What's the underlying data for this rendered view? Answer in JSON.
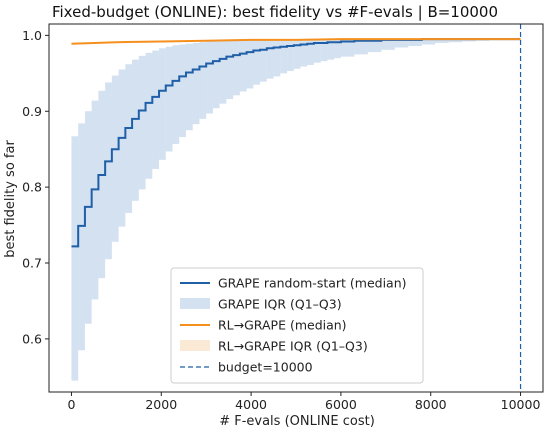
{
  "chart_data": {
    "type": "line",
    "title": "Fixed-budget (ONLINE): best fidelity vs #F-evals  |  B=10000",
    "xlabel": "# F-evals (ONLINE cost)",
    "ylabel": "best fidelity so far",
    "xlim": [
      -500,
      10500
    ],
    "ylim": [
      0.53,
      1.015
    ],
    "xticks": [
      0,
      2000,
      4000,
      6000,
      8000,
      10000
    ],
    "yticks": [
      0.6,
      0.7,
      0.8,
      0.9,
      1.0
    ],
    "xtick_labels": [
      "0",
      "2000",
      "4000",
      "6000",
      "8000",
      "10000"
    ],
    "ytick_labels": [
      "0.6",
      "0.7",
      "0.8",
      "0.9",
      "1.0"
    ],
    "grid": false,
    "legend_position": "lower-center",
    "series": [
      {
        "name": "GRAPE random-start (median)",
        "kind": "step",
        "color": "#1f5fa8",
        "x": [
          0,
          150,
          300,
          450,
          600,
          750,
          900,
          1050,
          1200,
          1350,
          1500,
          1650,
          1800,
          1950,
          2100,
          2250,
          2400,
          2550,
          2700,
          2850,
          3000,
          3150,
          3300,
          3450,
          3600,
          3750,
          3900,
          4050,
          4200,
          4350,
          4500,
          4650,
          4800,
          4950,
          5100,
          5250,
          5400,
          5550,
          5700,
          5850,
          6000,
          6300,
          6600,
          6900,
          7200,
          7500,
          7800,
          8100,
          8400,
          8700,
          9000,
          9300,
          9600,
          10000
        ],
        "y": [
          0.722,
          0.749,
          0.774,
          0.797,
          0.816,
          0.834,
          0.85,
          0.865,
          0.878,
          0.89,
          0.901,
          0.911,
          0.919,
          0.927,
          0.934,
          0.94,
          0.946,
          0.951,
          0.955,
          0.959,
          0.963,
          0.966,
          0.969,
          0.972,
          0.974,
          0.976,
          0.978,
          0.98,
          0.981,
          0.983,
          0.984,
          0.985,
          0.986,
          0.987,
          0.988,
          0.989,
          0.99,
          0.99,
          0.991,
          0.991,
          0.992,
          0.993,
          0.993,
          0.994,
          0.994,
          0.994,
          0.995,
          0.995,
          0.995,
          0.995,
          0.995,
          0.995,
          0.995,
          0.995
        ]
      },
      {
        "name": "GRAPE IQR (Q1–Q3)",
        "kind": "band",
        "color": "#aec8e6",
        "x": [
          0,
          150,
          300,
          450,
          600,
          750,
          900,
          1050,
          1200,
          1350,
          1500,
          1650,
          1800,
          1950,
          2100,
          2250,
          2400,
          2550,
          2700,
          2850,
          3000,
          3150,
          3300,
          3450,
          3600,
          3750,
          3900,
          4050,
          4200,
          4350,
          4500,
          4650,
          4800,
          4950,
          5100,
          5250,
          5400,
          5550,
          5700,
          5850,
          6000,
          6300,
          6600,
          6900,
          7200,
          7500,
          7800,
          8100,
          8400,
          8700,
          9000,
          9300,
          9600,
          10000
        ],
        "lower": [
          0.545,
          0.585,
          0.62,
          0.652,
          0.68,
          0.705,
          0.728,
          0.748,
          0.766,
          0.782,
          0.797,
          0.811,
          0.824,
          0.836,
          0.847,
          0.857,
          0.866,
          0.875,
          0.883,
          0.89,
          0.897,
          0.904,
          0.91,
          0.916,
          0.921,
          0.926,
          0.93,
          0.935,
          0.939,
          0.943,
          0.946,
          0.95,
          0.953,
          0.956,
          0.959,
          0.961,
          0.964,
          0.966,
          0.968,
          0.97,
          0.972,
          0.975,
          0.978,
          0.981,
          0.984,
          0.986,
          0.988,
          0.99,
          0.991,
          0.992,
          0.993,
          0.994,
          0.994,
          0.995
        ],
        "upper": [
          0.867,
          0.884,
          0.9,
          0.914,
          0.927,
          0.938,
          0.947,
          0.955,
          0.962,
          0.968,
          0.973,
          0.977,
          0.98,
          0.983,
          0.985,
          0.987,
          0.988,
          0.989,
          0.99,
          0.991,
          0.992,
          0.993,
          0.993,
          0.994,
          0.994,
          0.994,
          0.995,
          0.995,
          0.995,
          0.995,
          0.995,
          0.995,
          0.995,
          0.995,
          0.995,
          0.995,
          0.995,
          0.995,
          0.995,
          0.995,
          0.995,
          0.995,
          0.995,
          0.995,
          0.995,
          0.995,
          0.995,
          0.995,
          0.995,
          0.995,
          0.995,
          0.995,
          0.995,
          0.995
        ]
      },
      {
        "name": "RL→GRAPE (median)",
        "kind": "line",
        "color": "#f5901e",
        "x": [
          0,
          1000,
          2000,
          3000,
          4000,
          5000,
          6000,
          7000,
          8000,
          9000,
          10000
        ],
        "y": [
          0.989,
          0.991,
          0.992,
          0.993,
          0.994,
          0.994,
          0.995,
          0.995,
          0.995,
          0.995,
          0.995
        ]
      },
      {
        "name": "RL→GRAPE IQR (Q1–Q3)",
        "kind": "band",
        "color": "#f8dfc2",
        "x": [
          0,
          1000,
          2000,
          3000,
          4000,
          5000,
          6000,
          7000,
          8000,
          9000,
          10000
        ],
        "lower": [
          0.988,
          0.99,
          0.991,
          0.992,
          0.993,
          0.994,
          0.994,
          0.995,
          0.995,
          0.995,
          0.995
        ],
        "upper": [
          0.99,
          0.992,
          0.993,
          0.994,
          0.995,
          0.995,
          0.995,
          0.995,
          0.995,
          0.995,
          0.995
        ]
      },
      {
        "name": "budget=10000",
        "kind": "vline",
        "color": "#1f5fa8",
        "x": 10000
      }
    ]
  }
}
